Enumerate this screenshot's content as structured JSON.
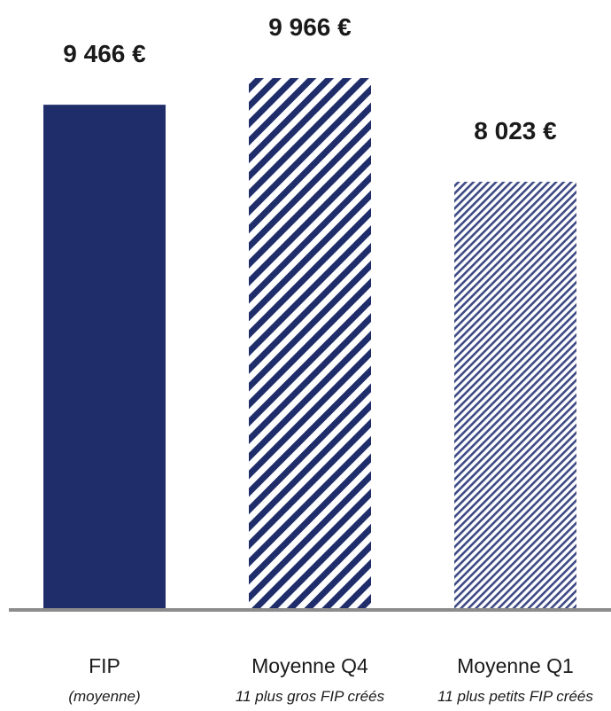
{
  "chart_data": {
    "type": "bar",
    "categories": [
      "FIP",
      "Moyenne Q4",
      "Moyenne Q1"
    ],
    "subtitles": [
      "(moyenne)",
      "11 plus gros FIP créés",
      "11 plus petits FIP créés"
    ],
    "values": [
      9466,
      9966,
      8023
    ],
    "value_labels": [
      "9 466 €",
      "9 966 €",
      "8 023 €"
    ],
    "styles": [
      "solid",
      "wide-stripes",
      "fine-stripes"
    ],
    "ylim": [
      0,
      10000
    ],
    "grid": false,
    "colors": {
      "bar": "#1f2d6b",
      "axis": "#8c8c8c",
      "text": "#1a1a1a"
    }
  }
}
